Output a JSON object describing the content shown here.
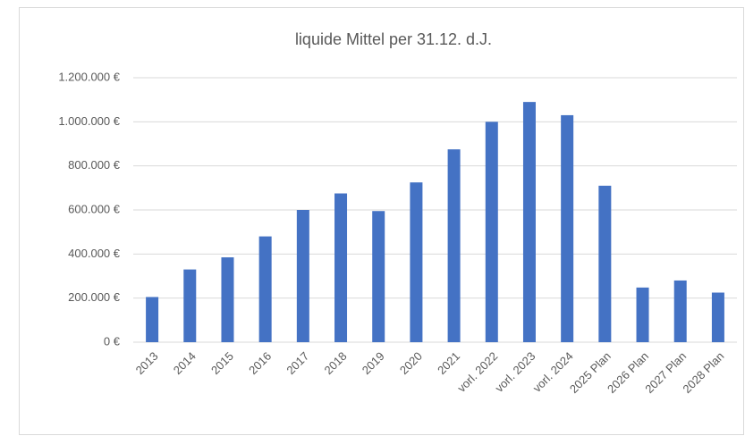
{
  "chart_data": {
    "type": "bar",
    "title": "liquide Mittel per 31.12. d.J.",
    "categories": [
      "2013",
      "2014",
      "2015",
      "2016",
      "2017",
      "2018",
      "2019",
      "2020",
      "2021",
      "vorl. 2022",
      "vorl. 2023",
      "vorl. 2024",
      "2025 Plan",
      "2026 Plan",
      "2027 Plan",
      "2028 Plan"
    ],
    "values": [
      205000,
      330000,
      385000,
      480000,
      600000,
      675000,
      595000,
      725000,
      875000,
      1000000,
      1090000,
      1030000,
      710000,
      248000,
      280000,
      225000
    ],
    "color": "#4472c4",
    "ylim": [
      0,
      1200000
    ],
    "yticks": [
      {
        "value": 0,
        "label": "0 €"
      },
      {
        "value": 200000,
        "label": "200.000 €"
      },
      {
        "value": 400000,
        "label": "400.000 €"
      },
      {
        "value": 600000,
        "label": "600.000 €"
      },
      {
        "value": 800000,
        "label": "800.000 €"
      },
      {
        "value": 1000000,
        "label": "1.000.000 €"
      },
      {
        "value": 1200000,
        "label": "1.200.000 €"
      }
    ],
    "grid": true
  }
}
